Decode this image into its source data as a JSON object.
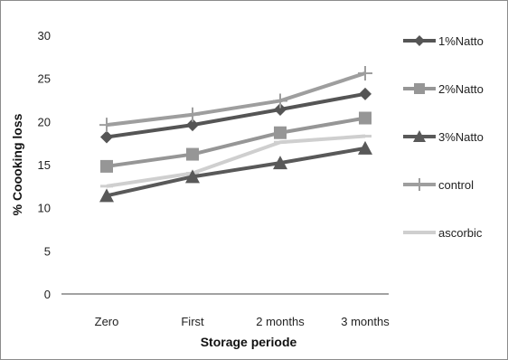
{
  "chart_data": {
    "type": "line",
    "categories": [
      "Zero",
      "First",
      "2 months",
      "3 months"
    ],
    "xlabel": "Storage periode",
    "ylabel": "% Coooking loss",
    "ylim": [
      0,
      30
    ],
    "yticks": [
      0,
      5,
      10,
      15,
      20,
      25,
      30
    ],
    "grid": false,
    "legend_position": "right",
    "series": [
      {
        "name": "1%Natto",
        "values": [
          18.2,
          19.6,
          21.4,
          23.2
        ],
        "color": "#555555",
        "marker": "diamond"
      },
      {
        "name": "2%Natto",
        "values": [
          14.8,
          16.2,
          18.7,
          20.4
        ],
        "color": "#969696",
        "marker": "square"
      },
      {
        "name": "3%Natto",
        "values": [
          11.4,
          13.6,
          15.2,
          16.9
        ],
        "color": "#595959",
        "marker": "triangle"
      },
      {
        "name": "control",
        "values": [
          19.6,
          20.8,
          22.4,
          25.6
        ],
        "color": "#9e9e9e",
        "marker": "plus"
      },
      {
        "name": "ascorbic",
        "values": [
          12.5,
          14.0,
          17.6,
          18.3
        ],
        "color": "#cfcfcf",
        "marker": "dash"
      }
    ]
  }
}
